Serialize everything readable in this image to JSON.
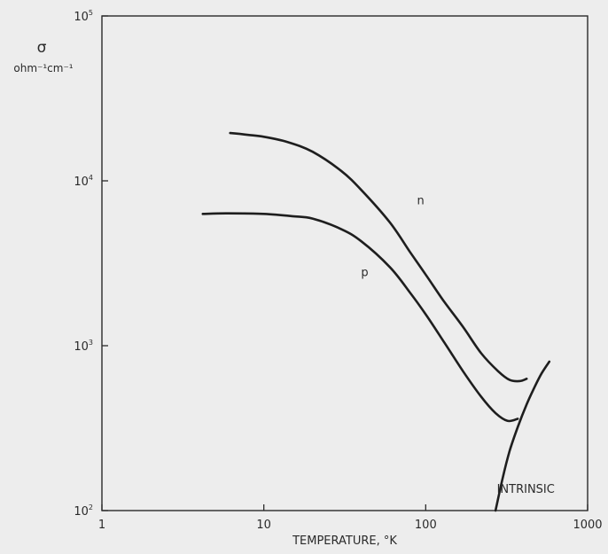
{
  "chart_data": {
    "type": "line",
    "title": "",
    "xlabel": "TEMPERATURE, °K",
    "ylabel": "σ",
    "ylabel_unit": "ohm⁻¹cm⁻¹",
    "x_scale": "log",
    "y_scale": "log",
    "xlim": [
      1,
      1000
    ],
    "ylim": [
      100,
      100000
    ],
    "x_ticks": [
      {
        "value": 1,
        "label": "1"
      },
      {
        "value": 10,
        "label": "10"
      },
      {
        "value": 100,
        "label": "100"
      },
      {
        "value": 1000,
        "label": "1000"
      }
    ],
    "y_ticks": [
      {
        "value": 100,
        "base": "10",
        "exp": "2"
      },
      {
        "value": 1000,
        "base": "10",
        "exp": "3"
      },
      {
        "value": 10000,
        "base": "10",
        "exp": "4"
      },
      {
        "value": 100000,
        "base": "10",
        "exp": "5"
      }
    ],
    "grid": false,
    "series": [
      {
        "name": "n",
        "x": [
          6.2,
          8,
          10,
          14,
          20,
          30,
          40,
          60,
          80,
          100,
          130,
          170,
          220,
          280,
          330,
          380,
          420
        ],
        "y": [
          19500,
          19000,
          18500,
          17200,
          15000,
          11500,
          8800,
          5600,
          3700,
          2700,
          1850,
          1300,
          900,
          700,
          620,
          610,
          630
        ]
      },
      {
        "name": "p",
        "x": [
          4.2,
          6,
          10,
          15,
          20,
          30,
          40,
          60,
          80,
          100,
          130,
          170,
          220,
          270,
          320,
          370
        ],
        "y": [
          6300,
          6350,
          6300,
          6100,
          5900,
          5100,
          4300,
          3000,
          2100,
          1550,
          1050,
          700,
          490,
          390,
          350,
          360
        ]
      },
      {
        "name": "INTRINSIC",
        "x": [
          270,
          300,
          330,
          370,
          420,
          470,
          520,
          580
        ],
        "y": [
          100,
          160,
          230,
          320,
          440,
          560,
          680,
          800
        ]
      }
    ]
  }
}
